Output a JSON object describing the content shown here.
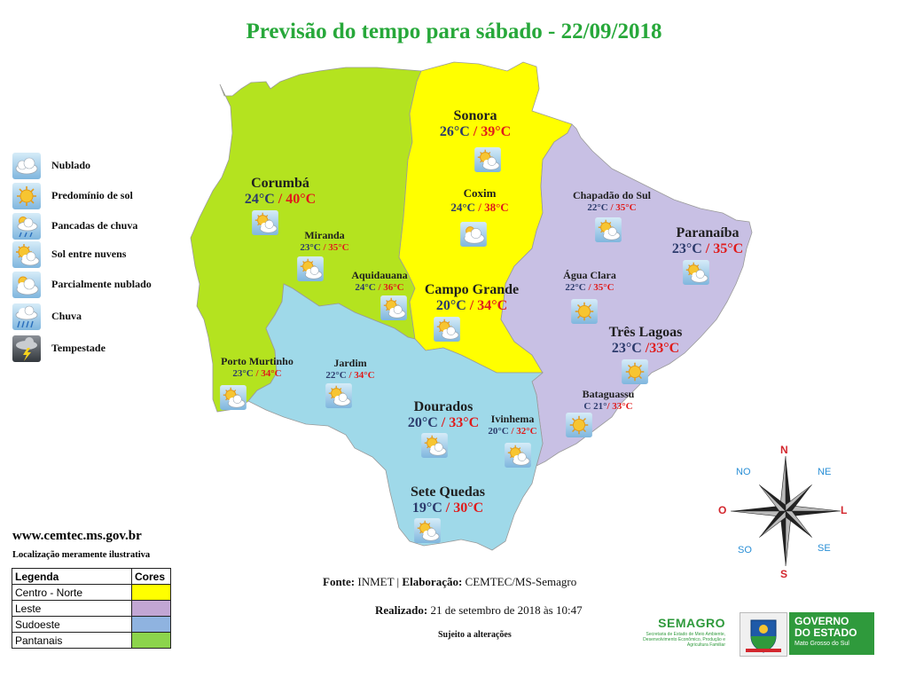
{
  "title": "Previsão do tempo para sábado - 22/09/2018",
  "legend_icons": [
    {
      "icon": "cloudy-icon",
      "label": "Nublado"
    },
    {
      "icon": "sunny-icon",
      "label": "Predomínio de sol"
    },
    {
      "icon": "showers-icon",
      "label": "Pancadas de chuva"
    },
    {
      "icon": "sun-clouds-icon",
      "label": "Sol entre nuvens"
    },
    {
      "icon": "partly-cloudy-icon",
      "label": "Parcialmente nublado"
    },
    {
      "icon": "rain-icon",
      "label": "Chuva"
    },
    {
      "icon": "storm-icon",
      "label": "Tempestade"
    }
  ],
  "website": "www.cemtec.ms.gov.br",
  "disclaimer": "Localização meramente ilustrativa",
  "color_legend": {
    "header_label": "Legenda",
    "header_colors": "Cores",
    "rows": [
      {
        "label": "Centro - Norte",
        "color": "#ffff00"
      },
      {
        "label": "Leste",
        "color": "#c2a6d4"
      },
      {
        "label": "Sudoeste",
        "color": "#8fb3e0"
      },
      {
        "label": "Pantanais",
        "color": "#8cd44c"
      }
    ]
  },
  "regions": {
    "centro_norte": "#ffff00",
    "leste": "#c8c0e4",
    "sudoeste": "#9fd9e9",
    "pantanais": "#b4e31f"
  },
  "cities": [
    {
      "name": "Sonora",
      "min": "26°C",
      "max": "39°C",
      "sep": " / ",
      "icon": "sun-clouds-icon"
    },
    {
      "name": "Coxim",
      "min": "24°C",
      "max": "38°C",
      "sep": " / ",
      "icon": "partly-cloudy-icon"
    },
    {
      "name": "Corumbá",
      "min": "24°C",
      "max": "40°C",
      "sep": " / ",
      "icon": "sun-clouds-icon"
    },
    {
      "name": "Miranda",
      "min": "23°C",
      "max": "35°C",
      "sep": " / ",
      "icon": "sun-clouds-icon"
    },
    {
      "name": "Aquidauana",
      "min": "24°C",
      "max": "36°C",
      "sep": " / ",
      "icon": "sun-clouds-icon"
    },
    {
      "name": "Campo Grande",
      "min": "20°C",
      "max": "34°C",
      "sep": " / ",
      "icon": "sun-clouds-icon"
    },
    {
      "name": "Chapadão do Sul",
      "min": "22°C",
      "max": "35°C",
      "sep": " / ",
      "icon": "sun-clouds-icon"
    },
    {
      "name": "Paranaíba",
      "min": "23°C",
      "max": "35°C",
      "sep": " / ",
      "icon": "sun-clouds-icon"
    },
    {
      "name": "Água Clara",
      "min": "22°C",
      "max": "35°C",
      "sep": " / ",
      "icon": "sunny-icon"
    },
    {
      "name": "Três Lagoas",
      "min": "23°C",
      "max": "33°C",
      "sep": " /",
      "icon": "sunny-icon"
    },
    {
      "name": "Porto Murtinho",
      "min": "23°C",
      "max": "34°C",
      "sep": " / ",
      "icon": "sun-clouds-icon"
    },
    {
      "name": "Jardim",
      "min": "22°C",
      "max": "34°C",
      "sep": " / ",
      "icon": "sun-clouds-icon"
    },
    {
      "name": "Dourados",
      "min": "20°C",
      "max": "33°C",
      "sep": " / ",
      "icon": "sun-clouds-icon"
    },
    {
      "name": "Ivinhema",
      "min": "20°C",
      "max": "32°C",
      "sep": " / ",
      "icon": "sun-clouds-icon"
    },
    {
      "name": "Bataguassu",
      "min": "C 21°",
      "max": "33°C",
      "sep": "/ ",
      "icon": "sunny-icon"
    },
    {
      "name": "Sete Quedas",
      "min": "19°C",
      "max": "30°C",
      "sep": " / ",
      "icon": "sun-clouds-icon"
    }
  ],
  "compass": {
    "n": "N",
    "s": "S",
    "l": "L",
    "o": "O",
    "ne": "NE",
    "no": "NO",
    "se": "SE",
    "so": "SO"
  },
  "footer": {
    "fonte_label": "Fonte:",
    "fonte_value": "INMET",
    "sep": " | ",
    "elab_label": "Elaboração:",
    "elab_value": "CEMTEC/MS-Semagro",
    "realizado_label": "Realizado:",
    "realizado_value": "21 de setembro de 2018 às 10:47",
    "sujeito": "Sujeito a alterações"
  },
  "logos": {
    "semagro_name": "SEMAGRO",
    "semagro_sub": "Secretaria de Estado de Meio Ambiente, Desenvolvimento Econômico, Produção e Agricultura Familiar",
    "gov_line1": "GOVERNO",
    "gov_line2": "DO ESTADO",
    "gov_line3": "Mato Grosso do Sul"
  }
}
